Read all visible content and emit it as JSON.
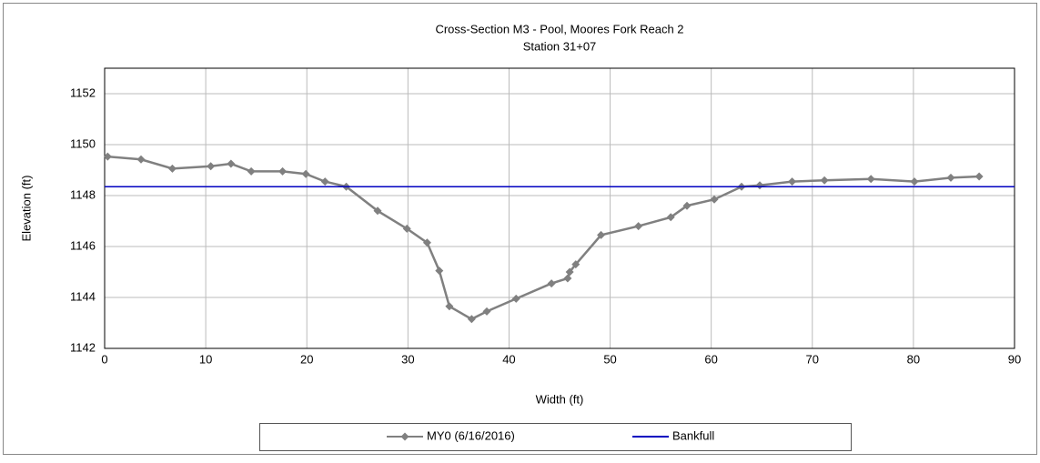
{
  "chart_data": {
    "type": "line",
    "title": "Cross-Section M3 - Pool, Moores Fork Reach 2",
    "subtitle": "Station 31+07",
    "x_label": "Width (ft)",
    "y_label": "Elevation (ft)",
    "xlim": [
      0,
      90
    ],
    "xticks": [
      0,
      10,
      20,
      30,
      40,
      50,
      60,
      70,
      80,
      90
    ],
    "ylim": [
      1142,
      1153
    ],
    "yticks": [
      1142,
      1144,
      1146,
      1148,
      1150,
      1152
    ],
    "grid": true,
    "legend": "bottom",
    "series": [
      {
        "name": "MY0 (6/16/2016)",
        "color": "#808080",
        "marker": "diamond",
        "x": [
          0.3,
          3.6,
          6.7,
          10.5,
          12.5,
          14.5,
          17.6,
          19.9,
          21.8,
          23.9,
          27,
          29.9,
          31.9,
          33.1,
          34.1,
          36.3,
          37.8,
          40.7,
          44.2,
          45.8,
          46.0,
          46.6,
          49.1,
          52.8,
          56,
          57.6,
          60.3,
          63,
          64.8,
          68,
          71.2,
          75.8,
          80.1,
          83.7,
          86.5
        ],
        "values": [
          1149.53,
          1149.42,
          1149.06,
          1149.15,
          1149.25,
          1148.95,
          1148.95,
          1148.85,
          1148.55,
          1148.35,
          1147.4,
          1146.7,
          1146.15,
          1145.05,
          1143.65,
          1143.15,
          1143.45,
          1143.95,
          1144.55,
          1144.75,
          1145.0,
          1145.3,
          1146.45,
          1146.8,
          1147.15,
          1147.6,
          1147.85,
          1148.35,
          1148.4,
          1148.55,
          1148.6,
          1148.65,
          1148.55,
          1148.7,
          1148.75
        ]
      },
      {
        "name": "Bankfull",
        "color": "#0000c0",
        "marker": "none",
        "x": [
          0,
          90
        ],
        "values": [
          1148.35,
          1148.35
        ]
      }
    ]
  }
}
